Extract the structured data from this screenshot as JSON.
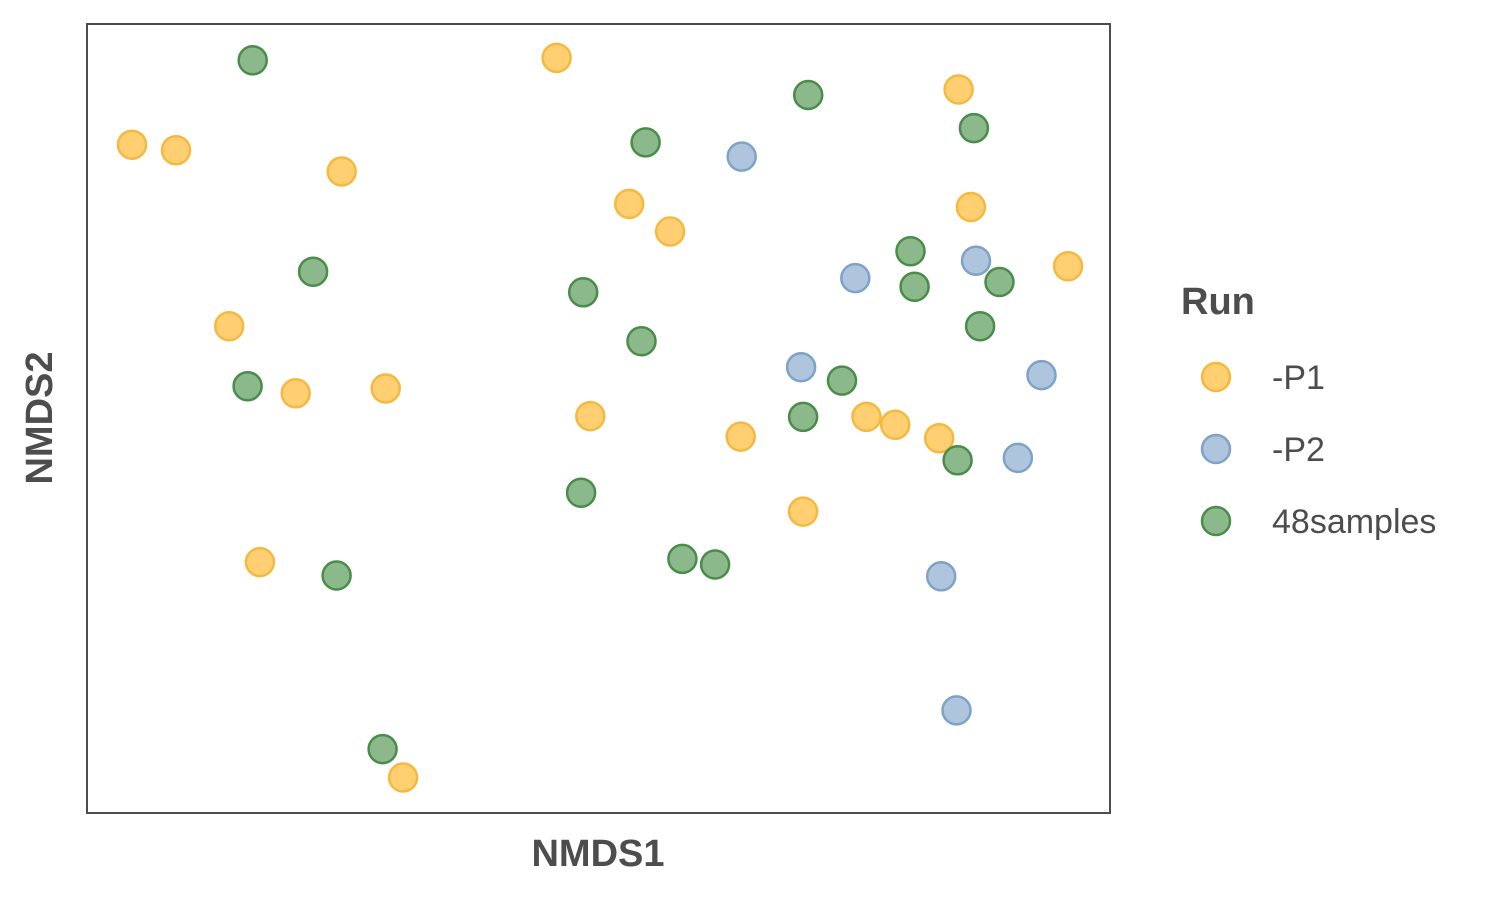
{
  "chart_data": {
    "type": "scatter",
    "xlabel": "NMDS1",
    "ylabel": "NMDS2",
    "xlim": [
      0,
      1
    ],
    "ylim": [
      0,
      1
    ],
    "grid": false,
    "legend": {
      "title": "Run",
      "position": "right"
    },
    "series": [
      {
        "name": "-P1",
        "color": "#FFC34D",
        "stroke": "#F5B942",
        "points": [
          [
            0.044,
            0.847
          ],
          [
            0.087,
            0.84
          ],
          [
            0.249,
            0.813
          ],
          [
            0.459,
            0.957
          ],
          [
            0.53,
            0.772
          ],
          [
            0.57,
            0.737
          ],
          [
            0.852,
            0.917
          ],
          [
            0.864,
            0.768
          ],
          [
            0.959,
            0.693
          ],
          [
            0.139,
            0.617
          ],
          [
            0.204,
            0.532
          ],
          [
            0.292,
            0.538
          ],
          [
            0.492,
            0.503
          ],
          [
            0.639,
            0.477
          ],
          [
            0.762,
            0.502
          ],
          [
            0.79,
            0.492
          ],
          [
            0.833,
            0.475
          ],
          [
            0.7,
            0.382
          ],
          [
            0.169,
            0.318
          ],
          [
            0.309,
            0.045
          ]
        ]
      },
      {
        "name": "-P2",
        "color": "#9BB7D6",
        "stroke": "#7FA2C8",
        "points": [
          [
            0.64,
            0.832
          ],
          [
            0.751,
            0.678
          ],
          [
            0.869,
            0.7
          ],
          [
            0.698,
            0.565
          ],
          [
            0.933,
            0.555
          ],
          [
            0.91,
            0.45
          ],
          [
            0.835,
            0.3
          ],
          [
            0.85,
            0.13
          ]
        ]
      },
      {
        "name": "48samples",
        "color": "#6FA86F",
        "stroke": "#4A8C4A",
        "points": [
          [
            0.162,
            0.954
          ],
          [
            0.705,
            0.91
          ],
          [
            0.546,
            0.85
          ],
          [
            0.867,
            0.868
          ],
          [
            0.805,
            0.712
          ],
          [
            0.221,
            0.686
          ],
          [
            0.485,
            0.66
          ],
          [
            0.809,
            0.667
          ],
          [
            0.892,
            0.673
          ],
          [
            0.873,
            0.617
          ],
          [
            0.542,
            0.598
          ],
          [
            0.157,
            0.541
          ],
          [
            0.738,
            0.548
          ],
          [
            0.7,
            0.502
          ],
          [
            0.851,
            0.447
          ],
          [
            0.483,
            0.406
          ],
          [
            0.582,
            0.322
          ],
          [
            0.614,
            0.315
          ],
          [
            0.244,
            0.301
          ],
          [
            0.289,
            0.081
          ]
        ]
      }
    ]
  }
}
